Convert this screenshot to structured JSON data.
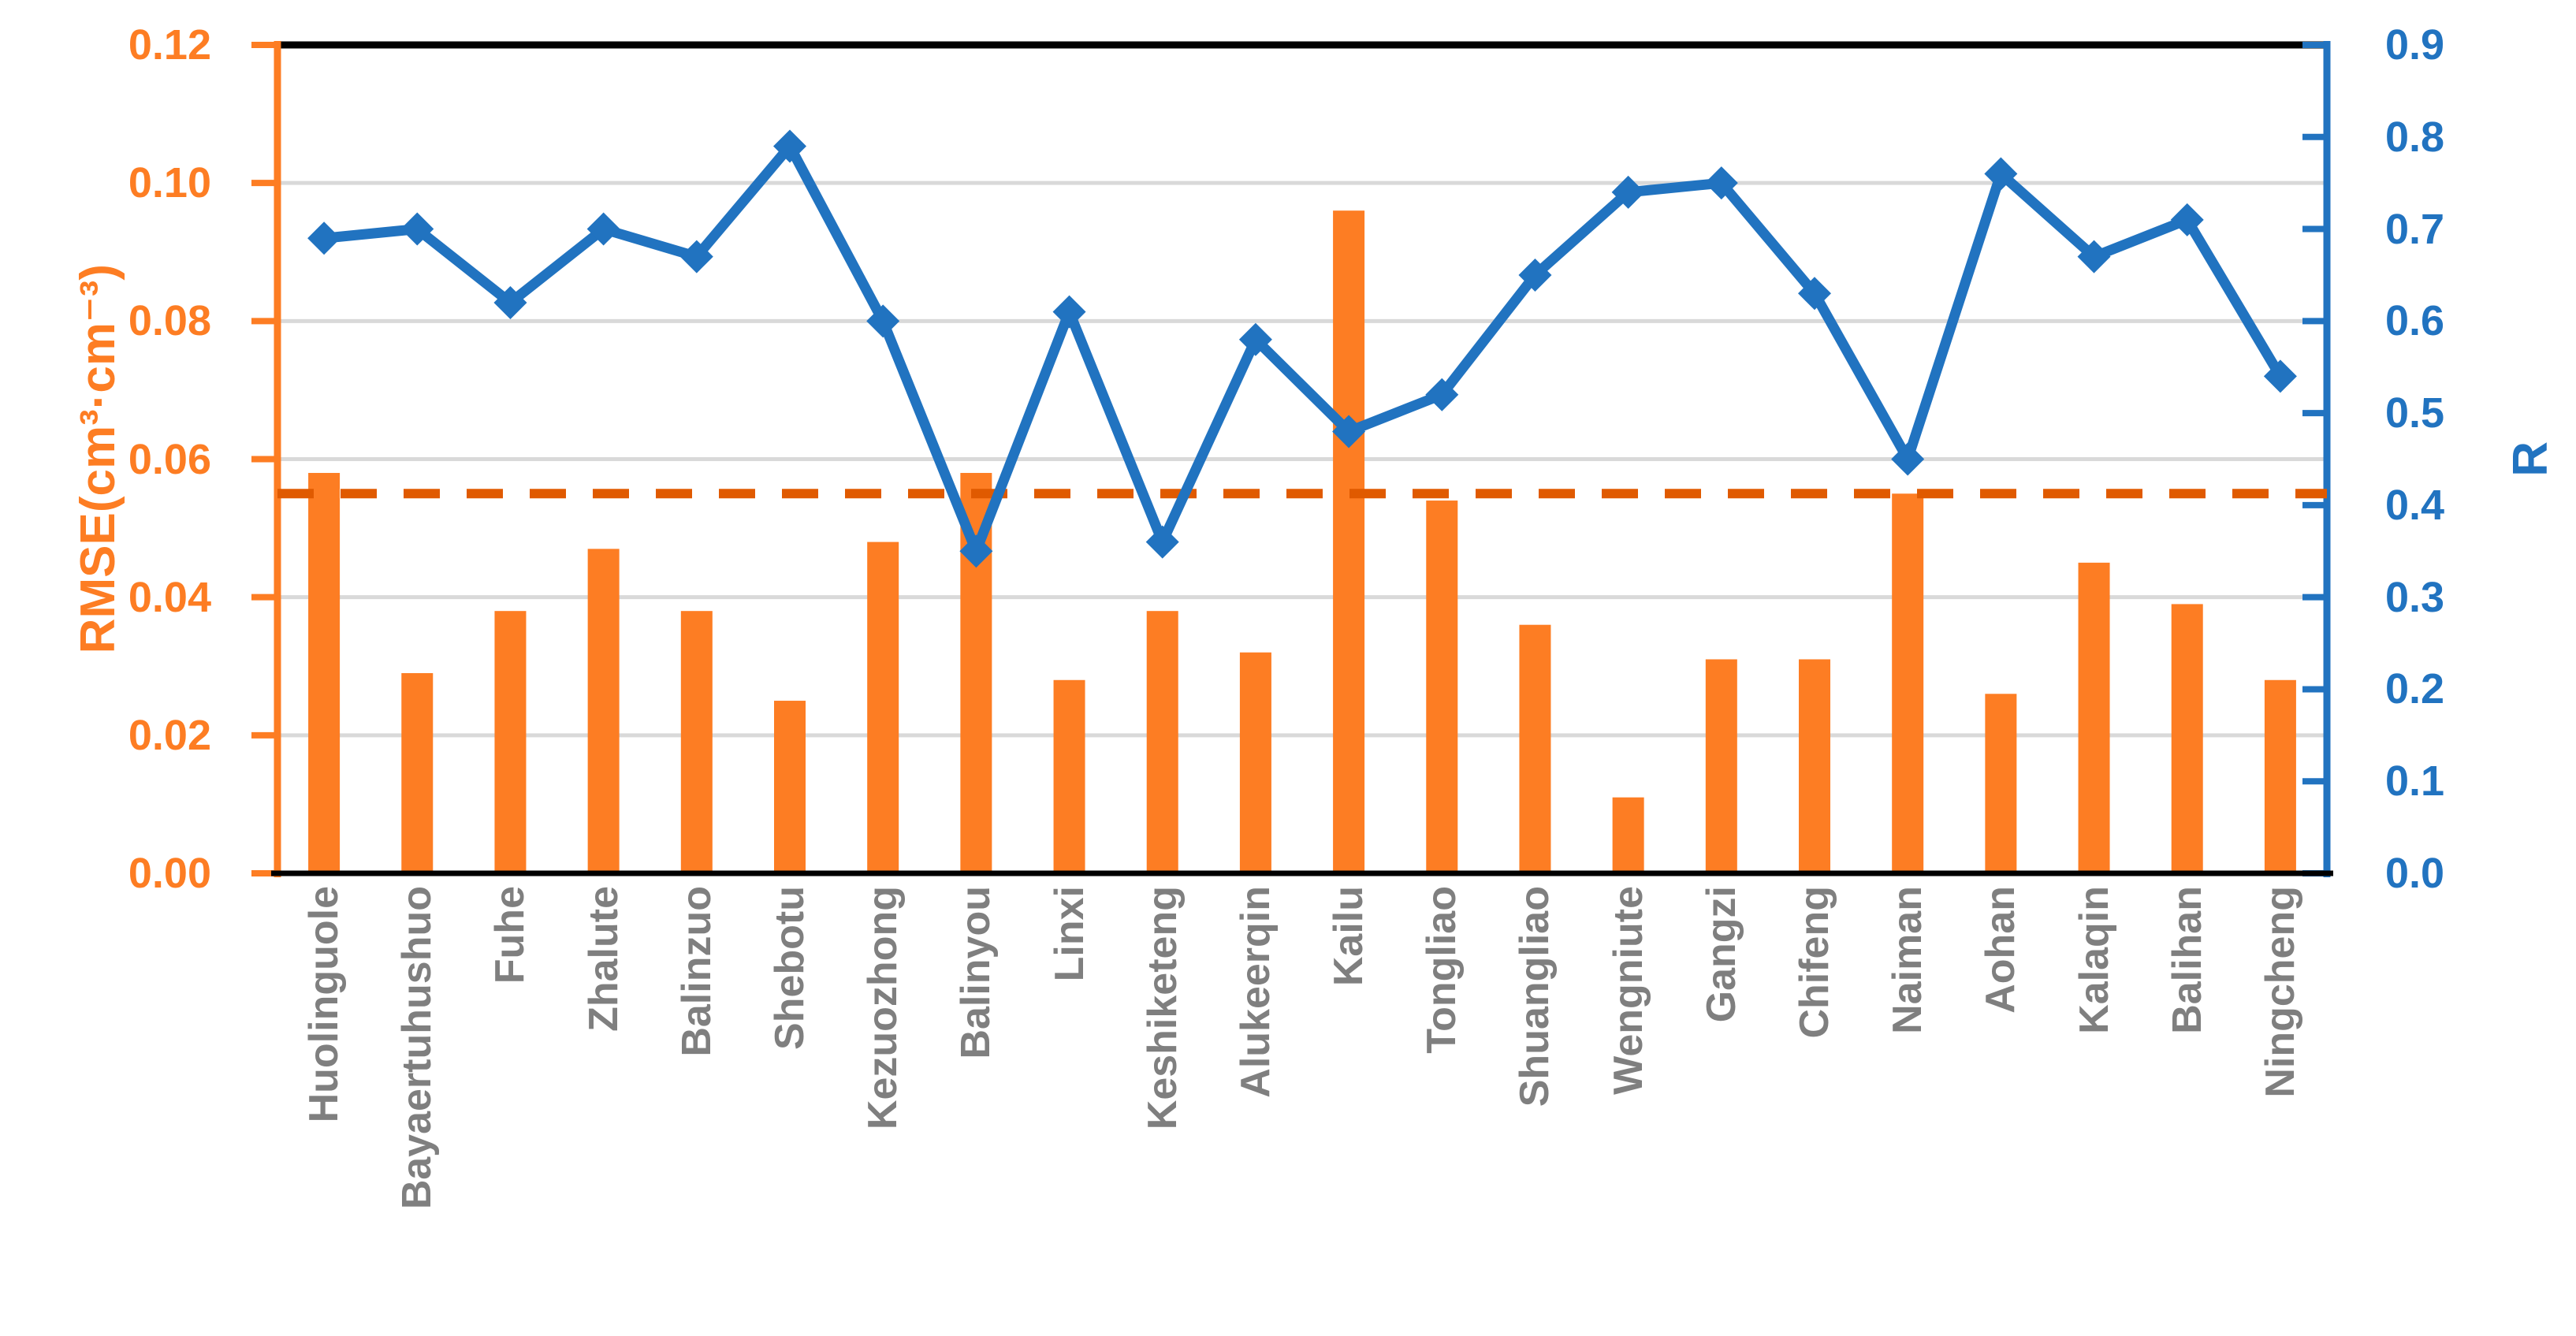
{
  "chart_data": {
    "type": "bar+line combo",
    "title": "",
    "categories": [
      "Huolinguole",
      "Bayaertuhushuo",
      "Fuhe",
      "Zhalute",
      "Balinzuo",
      "Shebotu",
      "Kezuozhong",
      "Balinyou",
      "Linxi",
      "Keshiketeng",
      "Alukeerqin",
      "Kailu",
      "Tongliao",
      "Shuangliao",
      "Wengniute",
      "Gangzi",
      "Chifeng",
      "Naiman",
      "Aohan",
      "Kalaqin",
      "Balihan",
      "Ningcheng"
    ],
    "series": [
      {
        "name": "RMSE",
        "type": "bar",
        "axis": "left",
        "color": "#FD7D23",
        "values": [
          0.058,
          0.029,
          0.038,
          0.047,
          0.038,
          0.025,
          0.048,
          0.058,
          0.028,
          0.038,
          0.032,
          0.096,
          0.054,
          0.036,
          0.011,
          0.031,
          0.031,
          0.055,
          0.026,
          0.045,
          0.039,
          0.028
        ]
      },
      {
        "name": "R",
        "type": "line",
        "axis": "right",
        "color": "#2173C0",
        "marker": "diamond",
        "values": [
          0.69,
          0.7,
          0.62,
          0.7,
          0.67,
          0.79,
          0.6,
          0.35,
          0.61,
          0.36,
          0.58,
          0.48,
          0.52,
          0.65,
          0.74,
          0.75,
          0.63,
          0.45,
          0.76,
          0.67,
          0.71,
          0.54
        ]
      }
    ],
    "reference_line": {
      "axis": "left",
      "value": 0.055,
      "style": "dashed",
      "color": "#E05A00"
    },
    "left_axis": {
      "label": "RMSE(cm³·cm⁻³)",
      "min": 0,
      "max": 0.12,
      "step": 0.02,
      "tick_labels": [
        "0.12",
        "0.10",
        "0.08",
        "0.06",
        "0.04",
        "0.02",
        "0.00"
      ],
      "color": "#FD7D23"
    },
    "right_axis": {
      "label": "R",
      "min": 0,
      "max": 0.9,
      "step": 0.1,
      "tick_labels": [
        "0.9",
        "0.8",
        "0.7",
        "0.6",
        "0.5",
        "0.4",
        "0.3",
        "0.2",
        "0.1",
        "0.0"
      ],
      "color": "#2173C0"
    },
    "grid": "horizontal",
    "gridline_color": "#D9D9D9",
    "category_label_color": "#7F7F7F",
    "plot_border_top_color": "#000000",
    "x_axis_line_color": "#000000",
    "legend_position": "none"
  }
}
